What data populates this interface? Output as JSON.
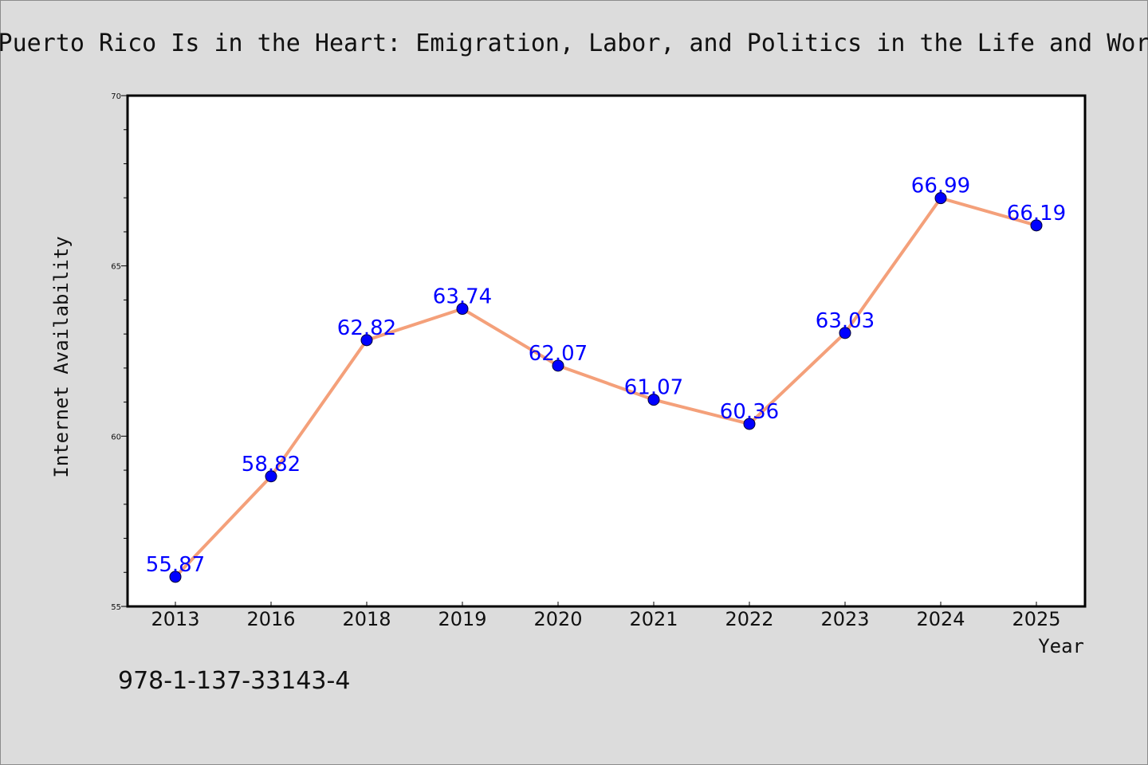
{
  "chart_data": {
    "type": "line",
    "title": "Puerto Rico Is in the Heart: Emigration, Labor, and Politics in the Life and Wor",
    "xlabel": "Year",
    "ylabel": "Internet Availability",
    "categories": [
      "2013",
      "2016",
      "2018",
      "2019",
      "2020",
      "2021",
      "2022",
      "2023",
      "2024",
      "2025"
    ],
    "series": [
      {
        "values": [
          55.87,
          58.82,
          62.82,
          63.74,
          62.07,
          61.07,
          60.36,
          63.03,
          66.99,
          66.19
        ],
        "labels": [
          "55.87",
          "58.82",
          "62.82",
          "63.74",
          "62.07",
          "61.07",
          "60.36",
          "63.03",
          "66.99",
          "66.19"
        ]
      }
    ],
    "ylim": [
      55,
      70
    ],
    "yticks": [
      55,
      60,
      65,
      70
    ],
    "ytick_labels": [
      "55",
      "60",
      "65",
      "70"
    ],
    "grid": false,
    "colors": {
      "line": "#f4a07a",
      "marker": "#0000ff",
      "data_label": "#0000ff",
      "background": "#dcdcdc",
      "plot_area": "#ffffff"
    }
  },
  "footer": {
    "isbn": "978-1-137-33143-4"
  }
}
